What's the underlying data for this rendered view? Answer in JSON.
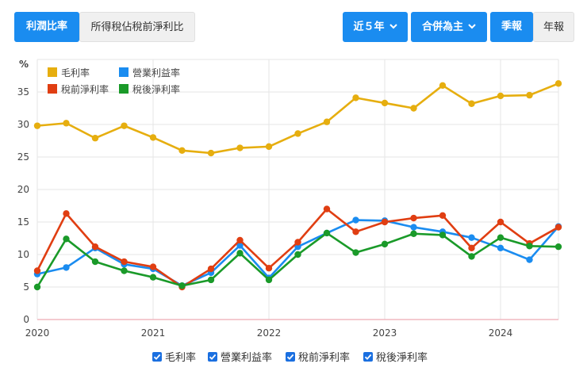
{
  "toolbar": {
    "tab_margin": "利潤比率",
    "tab_tax": "所得稅佔稅前淨利比",
    "range_label": "近５年",
    "scope_label": "合併為主",
    "freq_quarter": "季報",
    "freq_year": "年報"
  },
  "colors": {
    "gross": "#e6ae0f",
    "operating": "#1a8cf0",
    "pretax": "#e03e12",
    "aftertax": "#1a9a29",
    "primary_button": "#1a8cf0"
  },
  "chart_data": {
    "type": "line",
    "y_unit_label": "%",
    "ylim": [
      0,
      40
    ],
    "yticks": [
      0,
      5,
      10,
      15,
      20,
      25,
      30,
      35
    ],
    "xlim": [
      2020.0,
      2024.5
    ],
    "xticks": [
      {
        "value": 2020,
        "label": "2020"
      },
      {
        "value": 2021,
        "label": "2021"
      },
      {
        "value": 2022,
        "label": "2022"
      },
      {
        "value": 2023,
        "label": "2023"
      },
      {
        "value": 2024,
        "label": "2024"
      }
    ],
    "grid": true,
    "legend_position": "top-left",
    "x": [
      2020.0,
      2020.25,
      2020.5,
      2020.75,
      2021.0,
      2021.25,
      2021.5,
      2021.75,
      2022.0,
      2022.25,
      2022.5,
      2022.75,
      2023.0,
      2023.25,
      2023.5,
      2023.75,
      2024.0,
      2024.25,
      2024.5
    ],
    "series": [
      {
        "name": "毛利率",
        "color": "#e6ae0f",
        "values": [
          29.8,
          30.2,
          27.9,
          29.8,
          28.0,
          26.0,
          25.6,
          26.4,
          26.6,
          28.6,
          30.4,
          34.1,
          33.3,
          32.5,
          36.0,
          33.2,
          34.4,
          34.5,
          36.3
        ]
      },
      {
        "name": "營業利益率",
        "color": "#1a8cf0",
        "values": [
          7.0,
          8.0,
          11.0,
          8.5,
          7.8,
          5.2,
          7.2,
          11.4,
          6.4,
          11.2,
          13.3,
          15.3,
          15.2,
          14.2,
          13.5,
          12.6,
          11.0,
          9.2,
          14.3
        ]
      },
      {
        "name": "稅前淨利率",
        "color": "#e03e12",
        "values": [
          7.5,
          16.3,
          11.2,
          8.9,
          8.1,
          5.0,
          7.8,
          12.2,
          7.9,
          11.9,
          17.0,
          13.5,
          15.0,
          15.6,
          16.0,
          11.0,
          15.0,
          11.7,
          14.2
        ]
      },
      {
        "name": "稅後淨利率",
        "color": "#1a9a29",
        "values": [
          5.0,
          12.4,
          8.9,
          7.5,
          6.5,
          5.2,
          6.1,
          10.2,
          6.1,
          10.0,
          13.3,
          10.3,
          11.6,
          13.2,
          13.0,
          9.7,
          12.6,
          11.3,
          11.2
        ]
      }
    ]
  }
}
